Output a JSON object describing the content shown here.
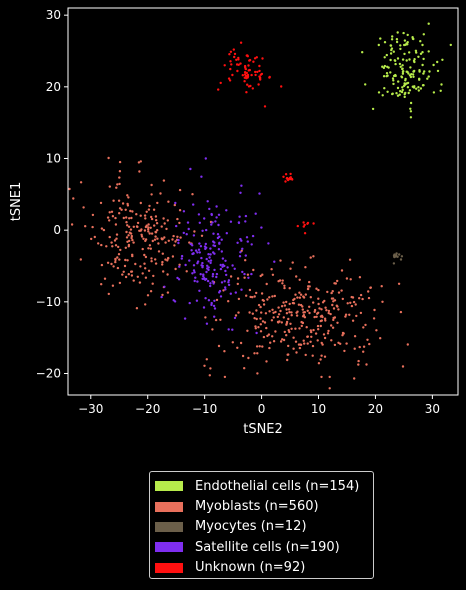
{
  "chart_data": {
    "type": "scatter",
    "xlabel": "tSNE2",
    "ylabel": "tSNE1",
    "xlim": [
      -34,
      34.5
    ],
    "ylim": [
      -23,
      31
    ],
    "xticks": [
      -30,
      -20,
      -10,
      0,
      10,
      20,
      30
    ],
    "yticks": [
      -20,
      -10,
      0,
      10,
      20,
      30
    ],
    "grid": false,
    "legend_position": "below",
    "series": [
      {
        "name": "Endothelial cells (n=154)",
        "color": "#b7eb4b",
        "clusters": [
          {
            "count": 154,
            "center": [
              25,
              22.5
            ],
            "spread": [
              2.8,
              2.6
            ]
          }
        ]
      },
      {
        "name": "Myoblasts (n=560)",
        "color": "#e8705c",
        "clusters": [
          {
            "count": 230,
            "center": [
              -22,
              -1
            ],
            "spread": [
              4.5,
              4.0
            ]
          },
          {
            "count": 330,
            "center": [
              7,
              -12
            ],
            "spread": [
              7.5,
              3.5
            ]
          }
        ]
      },
      {
        "name": "Myocytes (n=12)",
        "color": "#6b5f4a",
        "clusters": [
          {
            "count": 12,
            "center": [
              23.8,
              -3.8
            ],
            "spread": [
              0.4,
              0.5
            ]
          }
        ]
      },
      {
        "name": "Satellite cells (n=190)",
        "color": "#7f2ef0",
        "clusters": [
          {
            "count": 190,
            "center": [
              -9,
              -4
            ],
            "spread": [
              3.5,
              4.5
            ]
          }
        ]
      },
      {
        "name": "Unknown (n=92)",
        "color": "#ff1010",
        "clusters": [
          {
            "count": 70,
            "center": [
              -2.8,
              22.5
            ],
            "spread": [
              2.0,
              1.8
            ]
          },
          {
            "count": 14,
            "center": [
              4.8,
              7.0
            ],
            "spread": [
              0.6,
              0.3
            ]
          },
          {
            "count": 8,
            "center": [
              8,
              0.6
            ],
            "spread": [
              0.8,
              0.5
            ]
          }
        ]
      }
    ]
  }
}
